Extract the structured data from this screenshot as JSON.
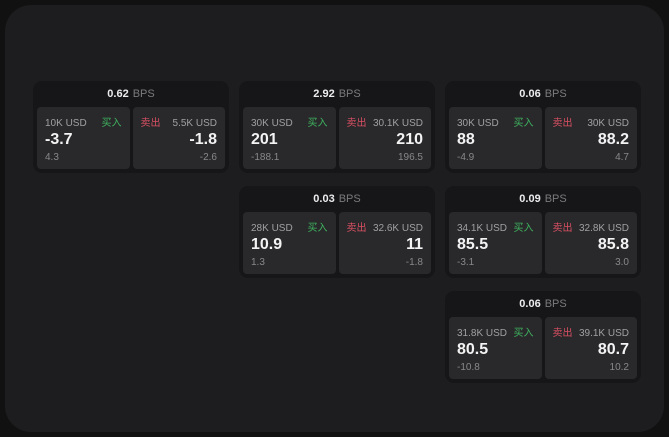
{
  "labels": {
    "bps_unit": "BPS"
  },
  "colors": {
    "buy_green": "#3fb35f",
    "sell_red": "#d94f63"
  },
  "columns": [
    {
      "cards": [
        {
          "bps": "0.62",
          "buy": {
            "size": "10K USD",
            "label": "买入",
            "value": "-3.7",
            "delta": "4.3"
          },
          "sell": {
            "label": "卖出",
            "size": "5.5K USD",
            "value": "-1.8",
            "delta": "-2.6"
          }
        }
      ]
    },
    {
      "cards": [
        {
          "bps": "2.92",
          "buy": {
            "size": "30K USD",
            "label": "买入",
            "value": "201",
            "delta": "-188.1"
          },
          "sell": {
            "label": "卖出",
            "size": "30.1K USD",
            "value": "210",
            "delta": "196.5"
          }
        },
        {
          "bps": "0.03",
          "buy": {
            "size": "28K USD",
            "label": "买入",
            "value": "10.9",
            "delta": "1.3"
          },
          "sell": {
            "label": "卖出",
            "size": "32.6K USD",
            "value": "11",
            "delta": "-1.8"
          }
        }
      ]
    },
    {
      "cards": [
        {
          "bps": "0.06",
          "buy": {
            "size": "30K USD",
            "label": "买入",
            "value": "88",
            "delta": "-4.9"
          },
          "sell": {
            "label": "卖出",
            "size": "30K USD",
            "value": "88.2",
            "delta": "4.7"
          }
        },
        {
          "bps": "0.09",
          "buy": {
            "size": "34.1K USD",
            "label": "买入",
            "value": "85.5",
            "delta": "-3.1"
          },
          "sell": {
            "label": "卖出",
            "size": "32.8K USD",
            "value": "85.8",
            "delta": "3.0"
          }
        },
        {
          "bps": "0.06",
          "buy": {
            "size": "31.8K USD",
            "label": "买入",
            "value": "80.5",
            "delta": "-10.8"
          },
          "sell": {
            "label": "卖出",
            "size": "39.1K USD",
            "value": "80.7",
            "delta": "10.2"
          }
        }
      ]
    }
  ]
}
